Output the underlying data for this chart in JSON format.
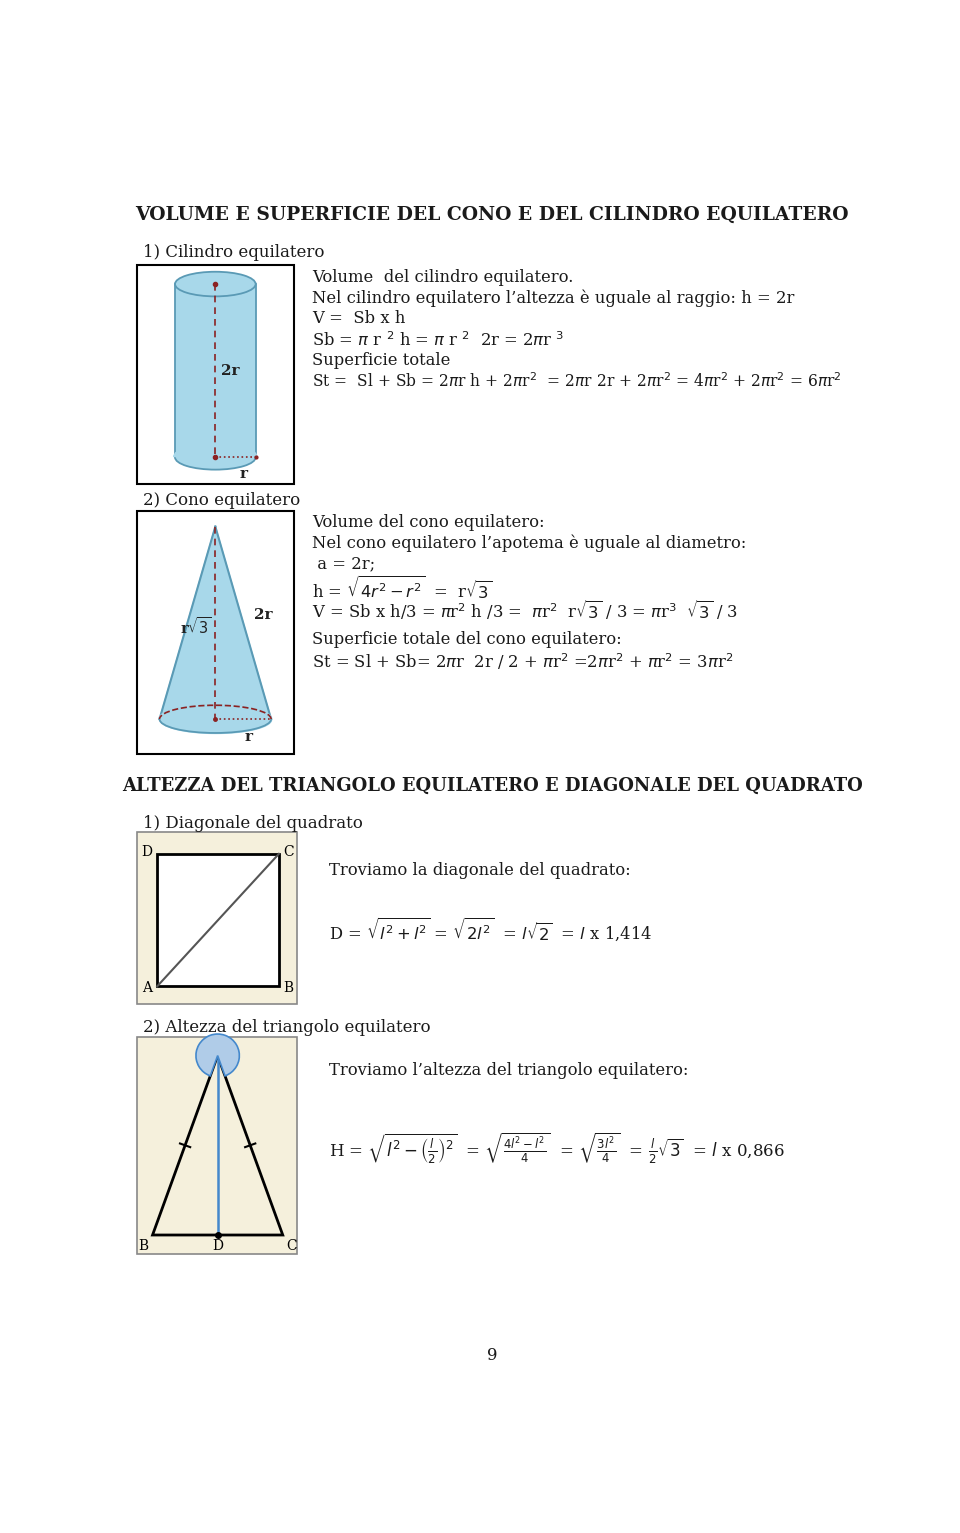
{
  "title": "VOLUME E SUPERFICIE DEL CONO E DEL CILINDRO EQUILATERO",
  "section1_label": "1) Cilindro equilatero",
  "section2_label": "2) Cono equilatero",
  "section3_title": "ALTEZZA DEL TRIANGOLO EQUILATERO E DIAGONALE DEL QUADRATO",
  "section3_label": "1) Diagonale del quadrato",
  "section3_text": "Troviamo la diagonale del quadrato:",
  "section4_label": "2) Altezza del triangolo equilatero",
  "section4_text": "Troviamo l’altezza del triangolo equilatero:",
  "page_number": "9",
  "bg_color": "#ffffff",
  "text_color": "#1a1a1a",
  "cyl_fill": "#a8d8ea",
  "cyl_edge": "#5a9ab5",
  "cone_fill": "#a8d8ea",
  "cone_edge": "#5a9ab5",
  "box_bg": "#f5f0dc",
  "dashed_color": "#8b2222",
  "dotted_color": "#8b2222",
  "sq_diag_color": "#555555",
  "height_line_color": "#4488cc"
}
